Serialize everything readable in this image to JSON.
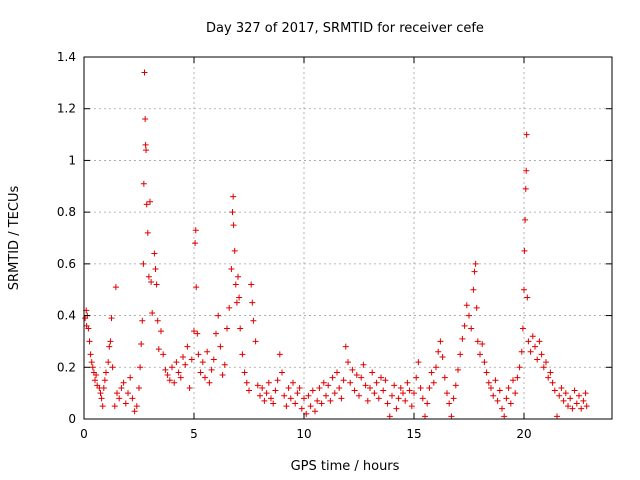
{
  "chart_data": {
    "type": "scatter",
    "title": "Day 327 of 2017, SRMTID for receiver cefe",
    "xlabel": "GPS time / hours",
    "ylabel": "SRMTID / TECUs",
    "xlim": [
      0,
      24
    ],
    "ylim": [
      0,
      1.4
    ],
    "xticks": [
      0,
      5,
      10,
      15,
      20
    ],
    "xtick_labels": [
      "0",
      "5",
      "10",
      "15",
      "20"
    ],
    "yticks": [
      0,
      0.2,
      0.4,
      0.6,
      0.8,
      1.0,
      1.2,
      1.4
    ],
    "ytick_labels": [
      "0",
      "0.2",
      "0.4",
      "0.6",
      "0.8",
      "1",
      "1.2",
      "1.4"
    ],
    "grid": true,
    "marker": "+",
    "color": "#e00000",
    "series": [
      {
        "name": "SRMTID",
        "points": [
          [
            0.05,
            0.39
          ],
          [
            0.1,
            0.42
          ],
          [
            0.12,
            0.36
          ],
          [
            0.15,
            0.4
          ],
          [
            0.2,
            0.35
          ],
          [
            0.25,
            0.3
          ],
          [
            0.3,
            0.25
          ],
          [
            0.35,
            0.22
          ],
          [
            0.4,
            0.2
          ],
          [
            0.45,
            0.18
          ],
          [
            0.5,
            0.15
          ],
          [
            0.55,
            0.17
          ],
          [
            0.6,
            0.13
          ],
          [
            0.7,
            0.12
          ],
          [
            0.75,
            0.1
          ],
          [
            0.8,
            0.08
          ],
          [
            0.85,
            0.05
          ],
          [
            0.9,
            0.12
          ],
          [
            0.95,
            0.15
          ],
          [
            1.0,
            0.18
          ],
          [
            1.1,
            0.22
          ],
          [
            1.15,
            0.28
          ],
          [
            1.2,
            0.3
          ],
          [
            1.25,
            0.39
          ],
          [
            1.3,
            0.2
          ],
          [
            1.4,
            0.05
          ],
          [
            1.45,
            0.51
          ],
          [
            1.5,
            0.1
          ],
          [
            1.6,
            0.08
          ],
          [
            1.7,
            0.12
          ],
          [
            1.8,
            0.14
          ],
          [
            1.9,
            0.06
          ],
          [
            2.0,
            0.1
          ],
          [
            2.1,
            0.16
          ],
          [
            2.2,
            0.08
          ],
          [
            2.3,
            0.03
          ],
          [
            2.4,
            0.05
          ],
          [
            2.5,
            0.12
          ],
          [
            2.55,
            0.2
          ],
          [
            2.6,
            0.29
          ],
          [
            2.65,
            0.38
          ],
          [
            2.7,
            0.6
          ],
          [
            2.72,
            0.91
          ],
          [
            2.75,
            1.34
          ],
          [
            2.78,
            1.16
          ],
          [
            2.8,
            1.06
          ],
          [
            2.82,
            1.04
          ],
          [
            2.85,
            0.83
          ],
          [
            2.9,
            0.72
          ],
          [
            2.95,
            0.55
          ],
          [
            3.0,
            0.84
          ],
          [
            3.05,
            0.53
          ],
          [
            3.1,
            0.41
          ],
          [
            3.2,
            0.64
          ],
          [
            3.25,
            0.58
          ],
          [
            3.3,
            0.52
          ],
          [
            3.35,
            0.38
          ],
          [
            3.4,
            0.27
          ],
          [
            3.5,
            0.34
          ],
          [
            3.6,
            0.25
          ],
          [
            3.7,
            0.19
          ],
          [
            3.8,
            0.17
          ],
          [
            3.9,
            0.15
          ],
          [
            4.0,
            0.2
          ],
          [
            4.1,
            0.14
          ],
          [
            4.2,
            0.22
          ],
          [
            4.3,
            0.18
          ],
          [
            4.4,
            0.16
          ],
          [
            4.5,
            0.24
          ],
          [
            4.6,
            0.21
          ],
          [
            4.7,
            0.28
          ],
          [
            4.8,
            0.12
          ],
          [
            4.9,
            0.23
          ],
          [
            5.0,
            0.34
          ],
          [
            5.05,
            0.68
          ],
          [
            5.08,
            0.73
          ],
          [
            5.1,
            0.51
          ],
          [
            5.15,
            0.33
          ],
          [
            5.2,
            0.25
          ],
          [
            5.3,
            0.18
          ],
          [
            5.4,
            0.22
          ],
          [
            5.5,
            0.16
          ],
          [
            5.6,
            0.26
          ],
          [
            5.7,
            0.14
          ],
          [
            5.8,
            0.19
          ],
          [
            5.9,
            0.23
          ],
          [
            6.0,
            0.33
          ],
          [
            6.1,
            0.4
          ],
          [
            6.2,
            0.28
          ],
          [
            6.3,
            0.17
          ],
          [
            6.4,
            0.21
          ],
          [
            6.5,
            0.35
          ],
          [
            6.6,
            0.43
          ],
          [
            6.7,
            0.58
          ],
          [
            6.75,
            0.8
          ],
          [
            6.78,
            0.86
          ],
          [
            6.8,
            0.75
          ],
          [
            6.85,
            0.65
          ],
          [
            6.9,
            0.52
          ],
          [
            6.95,
            0.45
          ],
          [
            7.0,
            0.55
          ],
          [
            7.05,
            0.47
          ],
          [
            7.1,
            0.35
          ],
          [
            7.2,
            0.25
          ],
          [
            7.3,
            0.18
          ],
          [
            7.4,
            0.14
          ],
          [
            7.5,
            0.11
          ],
          [
            7.6,
            0.52
          ],
          [
            7.65,
            0.45
          ],
          [
            7.7,
            0.38
          ],
          [
            7.8,
            0.3
          ],
          [
            7.9,
            0.13
          ],
          [
            8.0,
            0.09
          ],
          [
            8.1,
            0.12
          ],
          [
            8.2,
            0.07
          ],
          [
            8.3,
            0.1
          ],
          [
            8.4,
            0.14
          ],
          [
            8.5,
            0.08
          ],
          [
            8.6,
            0.06
          ],
          [
            8.7,
            0.11
          ],
          [
            8.8,
            0.15
          ],
          [
            8.9,
            0.25
          ],
          [
            9.0,
            0.18
          ],
          [
            9.1,
            0.09
          ],
          [
            9.2,
            0.05
          ],
          [
            9.3,
            0.12
          ],
          [
            9.4,
            0.08
          ],
          [
            9.5,
            0.14
          ],
          [
            9.6,
            0.06
          ],
          [
            9.7,
            0.1
          ],
          [
            9.8,
            0.12
          ],
          [
            9.9,
            0.04
          ],
          [
            10.0,
            0.08
          ],
          [
            10.1,
            0.02
          ],
          [
            10.2,
            0.09
          ],
          [
            10.3,
            0.05
          ],
          [
            10.4,
            0.11
          ],
          [
            10.5,
            0.03
          ],
          [
            10.6,
            0.07
          ],
          [
            10.7,
            0.12
          ],
          [
            10.8,
            0.06
          ],
          [
            10.9,
            0.14
          ],
          [
            11.0,
            0.09
          ],
          [
            11.1,
            0.13
          ],
          [
            11.2,
            0.07
          ],
          [
            11.3,
            0.16
          ],
          [
            11.4,
            0.1
          ],
          [
            11.5,
            0.18
          ],
          [
            11.6,
            0.12
          ],
          [
            11.7,
            0.08
          ],
          [
            11.8,
            0.15
          ],
          [
            11.9,
            0.28
          ],
          [
            12.0,
            0.22
          ],
          [
            12.1,
            0.14
          ],
          [
            12.2,
            0.19
          ],
          [
            12.3,
            0.11
          ],
          [
            12.4,
            0.17
          ],
          [
            12.5,
            0.09
          ],
          [
            12.6,
            0.16
          ],
          [
            12.7,
            0.21
          ],
          [
            12.8,
            0.13
          ],
          [
            12.9,
            0.07
          ],
          [
            13.0,
            0.12
          ],
          [
            13.1,
            0.18
          ],
          [
            13.2,
            0.1
          ],
          [
            13.3,
            0.14
          ],
          [
            13.4,
            0.08
          ],
          [
            13.5,
            0.16
          ],
          [
            13.6,
            0.11
          ],
          [
            13.7,
            0.15
          ],
          [
            13.8,
            0.06
          ],
          [
            13.9,
            0.01
          ],
          [
            14.0,
            0.09
          ],
          [
            14.1,
            0.13
          ],
          [
            14.2,
            0.04
          ],
          [
            14.3,
            0.08
          ],
          [
            14.4,
            0.12
          ],
          [
            14.5,
            0.1
          ],
          [
            14.6,
            0.07
          ],
          [
            14.7,
            0.14
          ],
          [
            14.8,
            0.11
          ],
          [
            14.9,
            0.05
          ],
          [
            15.0,
            0.1
          ],
          [
            15.1,
            0.16
          ],
          [
            15.2,
            0.22
          ],
          [
            15.3,
            0.12
          ],
          [
            15.4,
            0.08
          ],
          [
            15.5,
            0.01
          ],
          [
            15.6,
            0.06
          ],
          [
            15.7,
            0.12
          ],
          [
            15.8,
            0.18
          ],
          [
            15.9,
            0.14
          ],
          [
            16.0,
            0.2
          ],
          [
            16.1,
            0.26
          ],
          [
            16.2,
            0.3
          ],
          [
            16.3,
            0.24
          ],
          [
            16.4,
            0.16
          ],
          [
            16.5,
            0.1
          ],
          [
            16.6,
            0.06
          ],
          [
            16.7,
            0.01
          ],
          [
            16.8,
            0.08
          ],
          [
            16.9,
            0.13
          ],
          [
            17.0,
            0.19
          ],
          [
            17.1,
            0.25
          ],
          [
            17.2,
            0.31
          ],
          [
            17.3,
            0.36
          ],
          [
            17.4,
            0.44
          ],
          [
            17.5,
            0.4
          ],
          [
            17.6,
            0.35
          ],
          [
            17.7,
            0.5
          ],
          [
            17.75,
            0.57
          ],
          [
            17.8,
            0.6
          ],
          [
            17.85,
            0.43
          ],
          [
            17.9,
            0.3
          ],
          [
            18.0,
            0.25
          ],
          [
            18.1,
            0.29
          ],
          [
            18.2,
            0.22
          ],
          [
            18.3,
            0.18
          ],
          [
            18.4,
            0.14
          ],
          [
            18.5,
            0.12
          ],
          [
            18.6,
            0.09
          ],
          [
            18.7,
            0.15
          ],
          [
            18.8,
            0.07
          ],
          [
            18.9,
            0.11
          ],
          [
            19.0,
            0.04
          ],
          [
            19.1,
            0.01
          ],
          [
            19.2,
            0.08
          ],
          [
            19.3,
            0.12
          ],
          [
            19.4,
            0.06
          ],
          [
            19.5,
            0.15
          ],
          [
            19.6,
            0.1
          ],
          [
            19.7,
            0.16
          ],
          [
            19.8,
            0.2
          ],
          [
            19.9,
            0.26
          ],
          [
            19.95,
            0.35
          ],
          [
            20.0,
            0.5
          ],
          [
            20.02,
            0.65
          ],
          [
            20.05,
            0.77
          ],
          [
            20.08,
            0.89
          ],
          [
            20.1,
            0.96
          ],
          [
            20.12,
            1.1
          ],
          [
            20.15,
            0.47
          ],
          [
            20.2,
            0.3
          ],
          [
            20.3,
            0.26
          ],
          [
            20.4,
            0.32
          ],
          [
            20.5,
            0.28
          ],
          [
            20.6,
            0.23
          ],
          [
            20.7,
            0.3
          ],
          [
            20.8,
            0.25
          ],
          [
            20.9,
            0.2
          ],
          [
            21.0,
            0.22
          ],
          [
            21.1,
            0.16
          ],
          [
            21.2,
            0.18
          ],
          [
            21.3,
            0.14
          ],
          [
            21.4,
            0.11
          ],
          [
            21.5,
            0.01
          ],
          [
            21.6,
            0.09
          ],
          [
            21.7,
            0.12
          ],
          [
            21.8,
            0.07
          ],
          [
            21.9,
            0.1
          ],
          [
            22.0,
            0.05
          ],
          [
            22.1,
            0.08
          ],
          [
            22.2,
            0.04
          ],
          [
            22.3,
            0.11
          ],
          [
            22.4,
            0.06
          ],
          [
            22.5,
            0.09
          ],
          [
            22.6,
            0.04
          ],
          [
            22.7,
            0.07
          ],
          [
            22.8,
            0.1
          ],
          [
            22.85,
            0.05
          ]
        ]
      }
    ]
  }
}
